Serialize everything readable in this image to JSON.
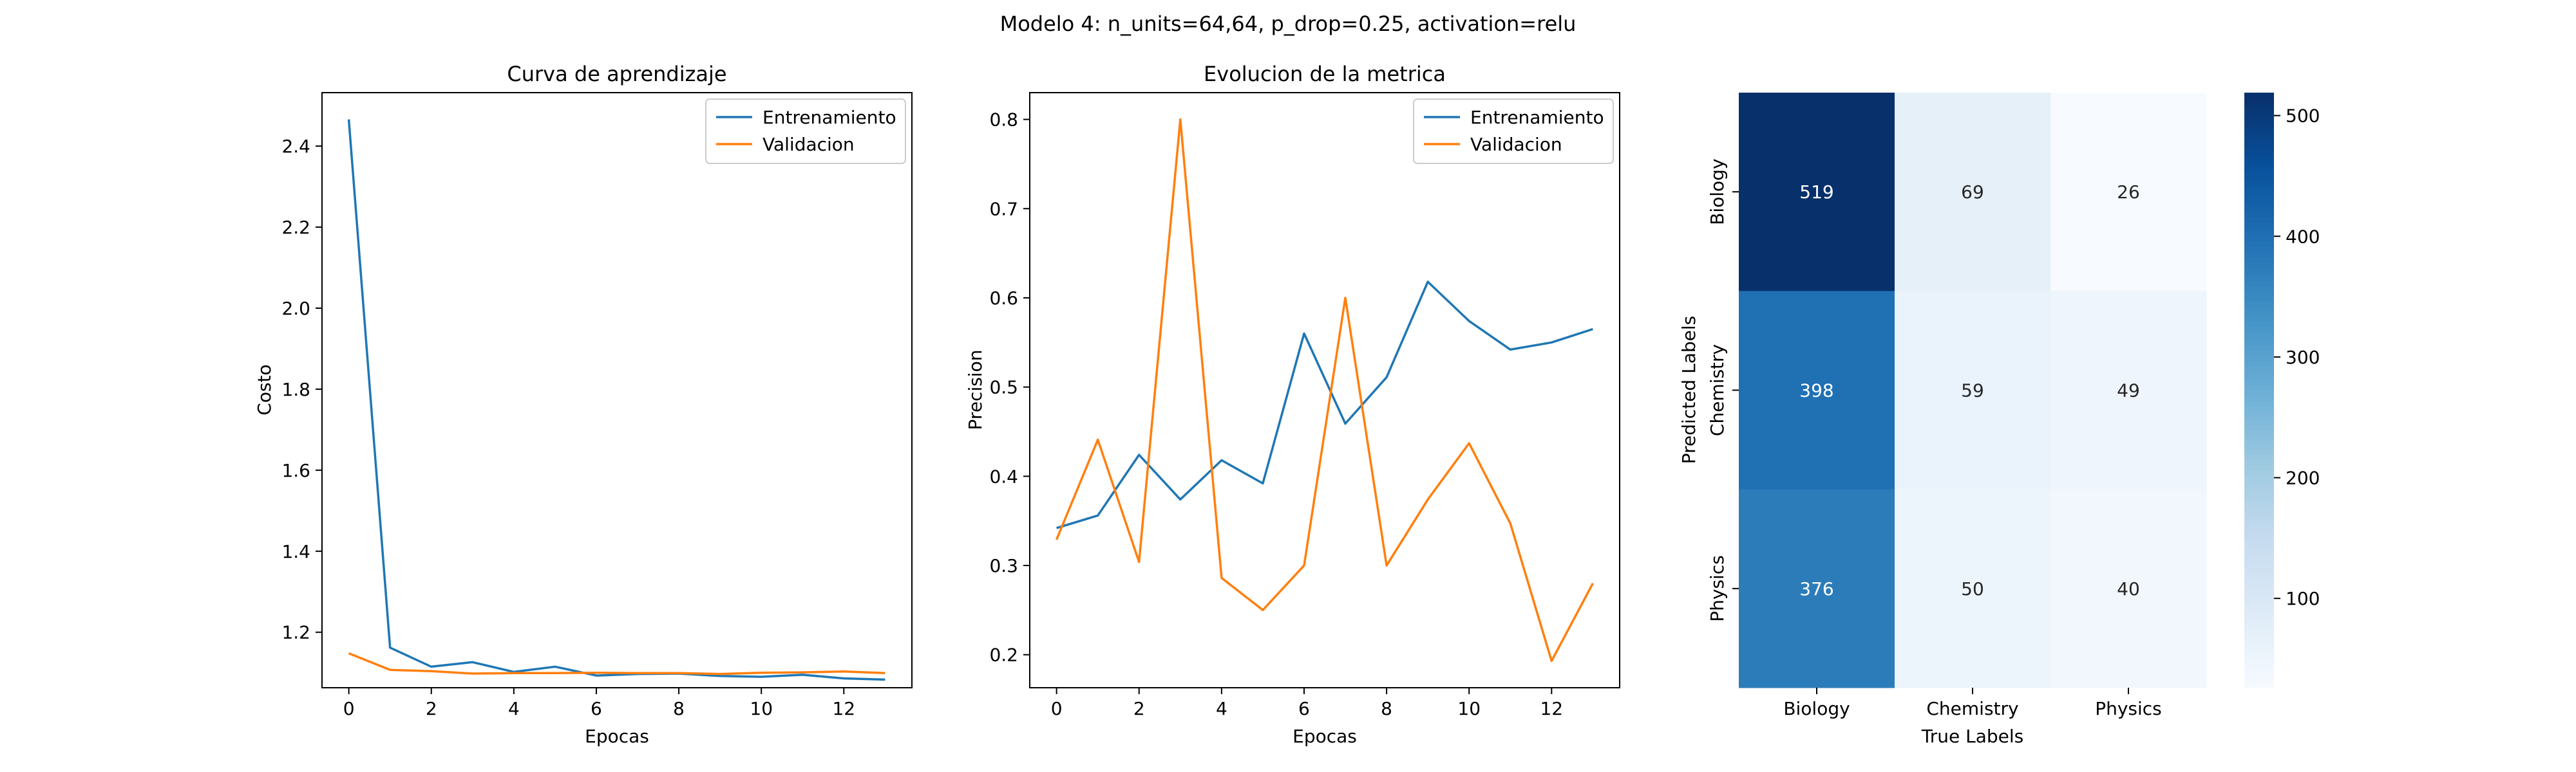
{
  "figure": {
    "suptitle": "Modelo 4: n_units=64,64, p_drop=0.25, activation=relu"
  },
  "chart_data": [
    {
      "type": "line",
      "title": "Curva de aprendizaje",
      "xlabel": "Epocas",
      "ylabel": "Costo",
      "x": [
        0,
        1,
        2,
        3,
        4,
        5,
        6,
        7,
        8,
        9,
        10,
        11,
        12,
        13
      ],
      "xlim": [
        -0.65,
        13.65
      ],
      "ylim": [
        1.063,
        2.532
      ],
      "xticks": [
        0,
        2,
        4,
        6,
        8,
        10,
        12
      ],
      "yticks": [
        1.2,
        1.4,
        1.6,
        1.8,
        2.0,
        2.2,
        2.4
      ],
      "ytick_labels": [
        "1.2",
        "1.4",
        "1.6",
        "1.8",
        "2.0",
        "2.2",
        "2.4"
      ],
      "grid": false,
      "legend": "top-right",
      "series": [
        {
          "name": "Entrenamiento",
          "color": "#1f77b4",
          "values": [
            2.466,
            1.162,
            1.115,
            1.126,
            1.102,
            1.115,
            1.093,
            1.097,
            1.098,
            1.092,
            1.09,
            1.095,
            1.086,
            1.083
          ]
        },
        {
          "name": "Validacion",
          "color": "#ff7f0e",
          "values": [
            1.148,
            1.107,
            1.104,
            1.098,
            1.099,
            1.099,
            1.1,
            1.099,
            1.099,
            1.097,
            1.1,
            1.101,
            1.103,
            1.099
          ]
        }
      ]
    },
    {
      "type": "line",
      "title": "Evolucion de la metrica",
      "xlabel": "Epocas",
      "ylabel": "Precision",
      "x": [
        0,
        1,
        2,
        3,
        4,
        5,
        6,
        7,
        8,
        9,
        10,
        11,
        12,
        13
      ],
      "xlim": [
        -0.65,
        13.65
      ],
      "ylim": [
        0.163,
        0.83
      ],
      "xticks": [
        0,
        2,
        4,
        6,
        8,
        10,
        12
      ],
      "yticks": [
        0.2,
        0.3,
        0.4,
        0.5,
        0.6,
        0.7,
        0.8
      ],
      "ytick_labels": [
        "0.2",
        "0.3",
        "0.4",
        "0.5",
        "0.6",
        "0.7",
        "0.8"
      ],
      "grid": false,
      "legend": "top-right",
      "series": [
        {
          "name": "Entrenamiento",
          "color": "#1f77b4",
          "values": [
            0.342,
            0.356,
            0.424,
            0.374,
            0.418,
            0.392,
            0.56,
            0.459,
            0.511,
            0.618,
            0.574,
            0.542,
            0.55,
            0.565
          ]
        },
        {
          "name": "Validacion",
          "color": "#ff7f0e",
          "values": [
            0.329,
            0.441,
            0.304,
            0.8,
            0.286,
            0.25,
            0.3,
            0.6,
            0.3,
            0.374,
            0.437,
            0.347,
            0.193,
            0.28
          ]
        }
      ]
    },
    {
      "type": "heatmap",
      "xlabel": "True Labels",
      "ylabel": "Predicted Labels",
      "x_categories": [
        "Biology",
        "Chemistry",
        "Physics"
      ],
      "y_categories": [
        "Biology",
        "Chemistry",
        "Physics"
      ],
      "values": [
        [
          519,
          69,
          26
        ],
        [
          398,
          59,
          49
        ],
        [
          376,
          50,
          40
        ]
      ],
      "colormap": "Blues",
      "colorbar": {
        "min": 26,
        "max": 519,
        "ticks": [
          100,
          200,
          300,
          400,
          500
        ]
      }
    }
  ]
}
